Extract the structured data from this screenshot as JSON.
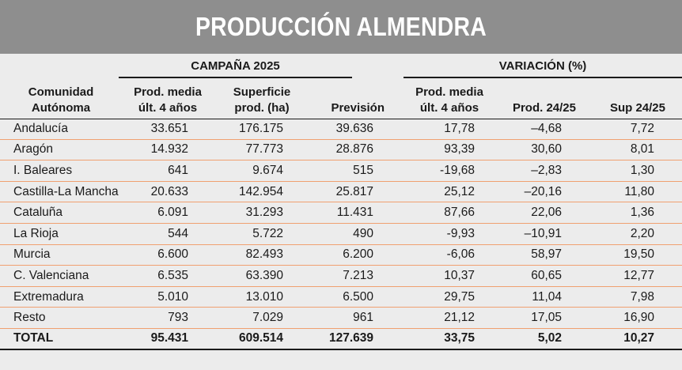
{
  "title": "PRODUCCIÓN ALMENDRA",
  "groups": {
    "campana": "CAMPAÑA 2025",
    "variacion": "VARIACIÓN (%)"
  },
  "headers": {
    "comunidad_l1": "Comunidad",
    "comunidad_l2": "Autónoma",
    "prod_media_l1": "Prod. media",
    "prod_media_l2": "últ. 4 años",
    "superficie_l1": "Superficie",
    "superficie_l2": "prod. (ha)",
    "prevision": "Previsión",
    "var_prod_media_l1": "Prod. media",
    "var_prod_media_l2": "últ. 4 años",
    "prod_24_25": "Prod. 24/25",
    "sup_24_25": "Sup 24/25"
  },
  "rows": [
    [
      "Andalucía",
      "33.651",
      "176.175",
      "39.636",
      "17,78",
      "–4,68",
      "7,72"
    ],
    [
      "Aragón",
      "14.932",
      "77.773",
      "28.876",
      "93,39",
      "30,60",
      "8,01"
    ],
    [
      "I. Baleares",
      "641",
      "9.674",
      "515",
      "-19,68",
      "–2,83",
      "1,30"
    ],
    [
      "Castilla-La Mancha",
      "20.633",
      "142.954",
      "25.817",
      "25,12",
      "–20,16",
      "11,80"
    ],
    [
      "Cataluña",
      "6.091",
      "31.293",
      "11.431",
      "87,66",
      "22,06",
      "1,36"
    ],
    [
      "La Rioja",
      "544",
      "5.722",
      "490",
      "-9,93",
      "–10,91",
      "2,20"
    ],
    [
      "Murcia",
      "6.600",
      "82.493",
      "6.200",
      "-6,06",
      "58,97",
      "19,50"
    ],
    [
      "C. Valenciana",
      "6.535",
      "63.390",
      "7.213",
      "10,37",
      "60,65",
      "12,77"
    ],
    [
      "Extremadura",
      "5.010",
      "13.010",
      "6.500",
      "29,75",
      "11,04",
      "7,98"
    ],
    [
      "Resto",
      "793",
      "7.029",
      "961",
      "21,12",
      "17,05",
      "16,90"
    ]
  ],
  "total": [
    "TOTAL",
    "95.431",
    "609.514",
    "127.639",
    "33,75",
    "5,02",
    "10,27"
  ],
  "colors": {
    "title_bg": "#8e8e8e",
    "page_bg": "#ececec",
    "row_rule": "#f0a070"
  }
}
